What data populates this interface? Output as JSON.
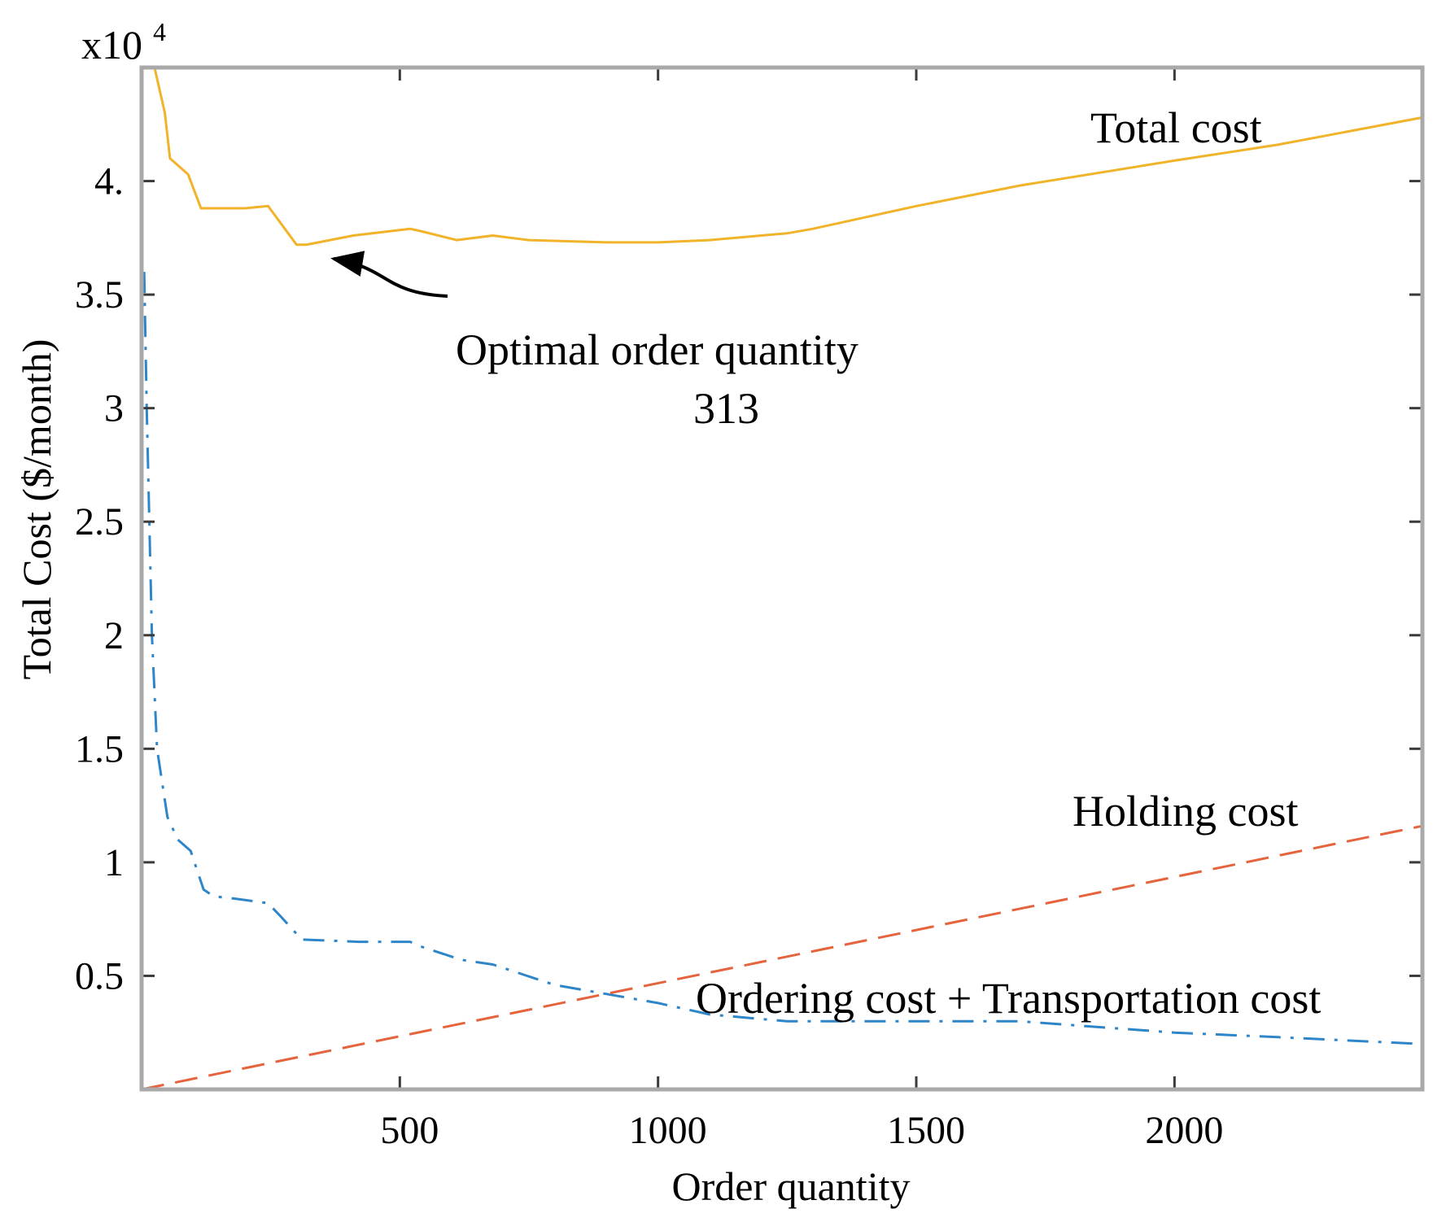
{
  "chart_data": {
    "type": "line",
    "xlabel": "Order quantity",
    "ylabel": "Total Cost ($/month)",
    "y_multiplier": "x10",
    "y_multiplier_exponent": "4",
    "xlim": [
      0,
      2480
    ],
    "ylim": [
      0,
      4.5
    ],
    "x_ticks": [
      500,
      1000,
      1500,
      2000
    ],
    "x_tick_labels": [
      "500",
      "1000",
      "1500",
      "2000"
    ],
    "y_ticks": [
      0.5,
      1,
      1.5,
      2,
      2.5,
      3,
      3.5,
      4
    ],
    "y_tick_labels": [
      "0.5",
      "1",
      "1.5",
      "2",
      "2.5",
      "3",
      "3.5",
      "4."
    ],
    "grid": false,
    "series": [
      {
        "name": "Total cost",
        "color": "#f0b32a",
        "style": "solid",
        "x": [
          25,
          45,
          55,
          90,
          115,
          200,
          245,
          300,
          320,
          410,
          520,
          540,
          610,
          680,
          750,
          900,
          1000,
          1100,
          1200,
          1250,
          1300,
          1500,
          1700,
          2000,
          2200,
          2480
        ],
        "y": [
          4.5,
          4.3,
          4.1,
          4.03,
          3.88,
          3.88,
          3.89,
          3.72,
          3.72,
          3.76,
          3.79,
          3.78,
          3.74,
          3.76,
          3.74,
          3.73,
          3.73,
          3.74,
          3.76,
          3.77,
          3.79,
          3.89,
          3.98,
          4.09,
          4.16,
          4.28
        ]
      },
      {
        "name": "Ordering cost + Transportation cost",
        "color": "#2e86c9",
        "style": "dashdot",
        "x": [
          5,
          10,
          20,
          30,
          50,
          70,
          95,
          120,
          140,
          180,
          245,
          270,
          310,
          420,
          520,
          540,
          620,
          680,
          800,
          1000,
          1100,
          1200,
          1250,
          1500,
          1700,
          2000,
          2200,
          2480
        ],
        "y": [
          3.6,
          3.0,
          2.0,
          1.5,
          1.2,
          1.1,
          1.05,
          0.88,
          0.85,
          0.84,
          0.82,
          0.76,
          0.66,
          0.65,
          0.65,
          0.63,
          0.57,
          0.55,
          0.46,
          0.38,
          0.33,
          0.31,
          0.3,
          0.3,
          0.3,
          0.25,
          0.23,
          0.2
        ]
      },
      {
        "name": "Holding cost",
        "color": "#e5643d",
        "style": "dashed",
        "x": [
          0,
          2480
        ],
        "y": [
          0,
          1.16
        ]
      }
    ],
    "annotations": {
      "total_cost": "Total cost",
      "holding_cost": "Holding cost",
      "ordering_cost": "Ordering cost + Transportation cost",
      "optimal_line1": "Optimal order quantity",
      "optimal_line2": "313",
      "optimal_x": 325,
      "optimal_y": 3.72
    }
  }
}
